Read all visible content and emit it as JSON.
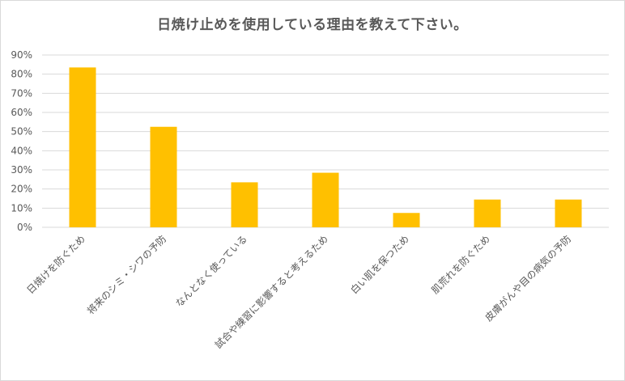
{
  "chart_data": {
    "type": "bar",
    "title": "日焼け止めを使用している理由を教えて下さい。",
    "categories": [
      "日焼けを防ぐため",
      "将来のシミ・シワの予防",
      "なんとなく使っている",
      "試合や練習に影響すると考えるため",
      "白い肌を保つため",
      "肌荒れを防ぐため",
      "皮膚がんや目の病気の予防"
    ],
    "values": [
      0.835,
      0.525,
      0.235,
      0.285,
      0.075,
      0.145,
      0.145
    ],
    "yticks": [
      "0%",
      "10%",
      "20%",
      "30%",
      "40%",
      "50%",
      "60%",
      "70%",
      "80%",
      "90%"
    ],
    "ylim": [
      0,
      0.9
    ],
    "grid": true,
    "legend": "none",
    "bar_color": "#FFC000"
  }
}
